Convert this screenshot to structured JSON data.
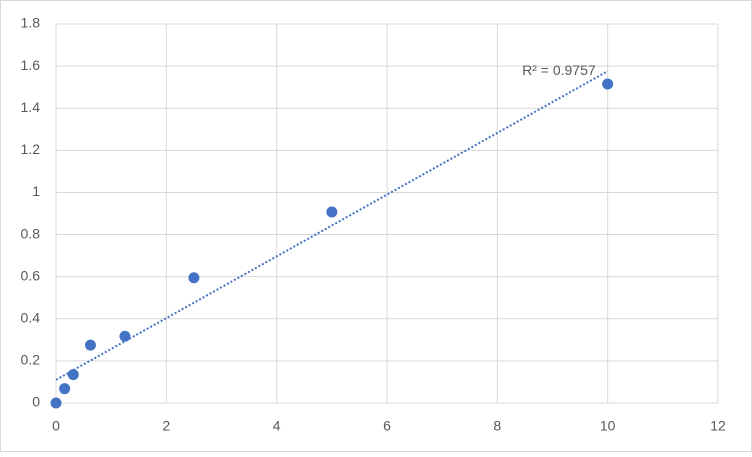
{
  "chart_data": {
    "type": "scatter",
    "x": [
      0,
      0.156,
      0.3125,
      0.625,
      1.25,
      2.5,
      5,
      10
    ],
    "values": [
      0,
      0.068,
      0.135,
      0.275,
      0.317,
      0.595,
      0.907,
      1.515
    ],
    "color": "#4472c4",
    "trendline": {
      "x": [
        0,
        10
      ],
      "values": [
        0.11,
        1.576
      ],
      "label": "R² = 0.9757"
    },
    "xlim": [
      0,
      12
    ],
    "xticks": [
      0,
      2,
      4,
      6,
      8,
      10,
      12
    ],
    "ylim": [
      0,
      1.8
    ],
    "yticks": [
      0,
      0.2,
      0.4,
      0.6,
      0.8,
      1,
      1.2,
      1.4,
      1.6,
      1.8
    ],
    "grid": true
  }
}
